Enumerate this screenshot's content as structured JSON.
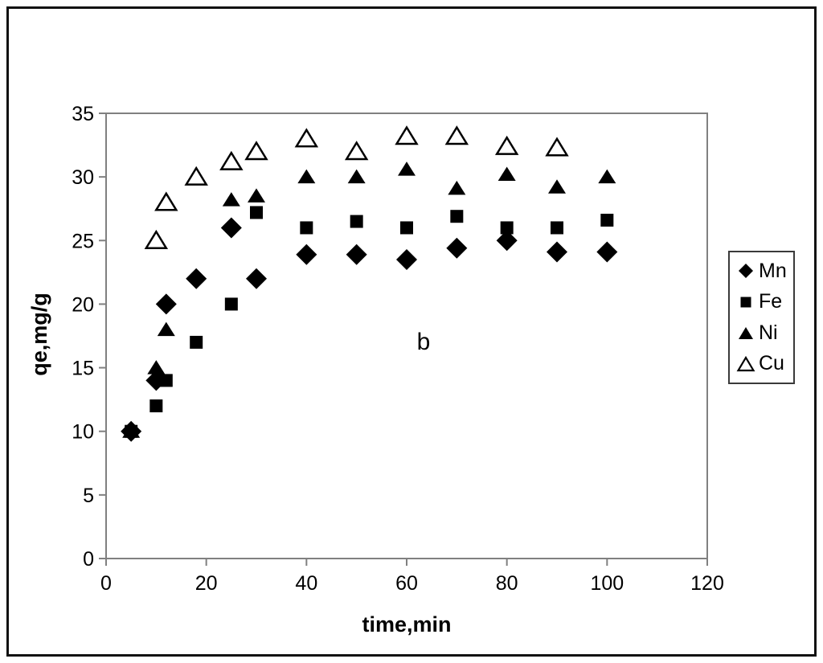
{
  "chart_data": {
    "type": "scatter",
    "title": "",
    "xlabel": "time,min",
    "ylabel": "qe,mg/g",
    "annotation": "b",
    "xlim": [
      0,
      120
    ],
    "ylim": [
      0,
      35
    ],
    "x_ticks": [
      0,
      20,
      40,
      60,
      80,
      100,
      120
    ],
    "y_ticks": [
      0,
      5,
      10,
      15,
      20,
      25,
      30,
      35
    ],
    "grid": false,
    "legend_position": "right-outside",
    "marker_color": "#000000",
    "axis_line_color": "#808080",
    "series": [
      {
        "name": "Mn",
        "marker": "diamond-filled",
        "points": [
          [
            5,
            10
          ],
          [
            10,
            14
          ],
          [
            12,
            20
          ],
          [
            18,
            22
          ],
          [
            25,
            26
          ],
          [
            30,
            22
          ],
          [
            40,
            23.9
          ],
          [
            50,
            23.9
          ],
          [
            60,
            23.5
          ],
          [
            70,
            24.4
          ],
          [
            80,
            25
          ],
          [
            90,
            24.1
          ],
          [
            100,
            24.1
          ]
        ]
      },
      {
        "name": "Fe",
        "marker": "square-filled",
        "points": [
          [
            5,
            10
          ],
          [
            10,
            12
          ],
          [
            12,
            14
          ],
          [
            18,
            17
          ],
          [
            25,
            20
          ],
          [
            30,
            27.2
          ],
          [
            40,
            26
          ],
          [
            50,
            26.5
          ],
          [
            60,
            26
          ],
          [
            70,
            26.9
          ],
          [
            80,
            26
          ],
          [
            90,
            26
          ],
          [
            100,
            26.6
          ]
        ]
      },
      {
        "name": "Ni",
        "marker": "triangle-filled",
        "points": [
          [
            5,
            10
          ],
          [
            10,
            15
          ],
          [
            12,
            18
          ],
          [
            25,
            28.2
          ],
          [
            30,
            28.5
          ],
          [
            40,
            30
          ],
          [
            50,
            30
          ],
          [
            60,
            30.6
          ],
          [
            70,
            29.1
          ],
          [
            80,
            30.2
          ],
          [
            90,
            29.2
          ],
          [
            100,
            30
          ]
        ]
      },
      {
        "name": "Cu",
        "marker": "triangle-open",
        "points": [
          [
            10,
            25
          ],
          [
            12,
            28
          ],
          [
            18,
            30
          ],
          [
            25,
            31.2
          ],
          [
            30,
            32
          ],
          [
            40,
            33
          ],
          [
            50,
            32
          ],
          [
            60,
            33.2
          ],
          [
            70,
            33.2
          ],
          [
            80,
            32.4
          ],
          [
            90,
            32.3
          ]
        ]
      }
    ]
  }
}
